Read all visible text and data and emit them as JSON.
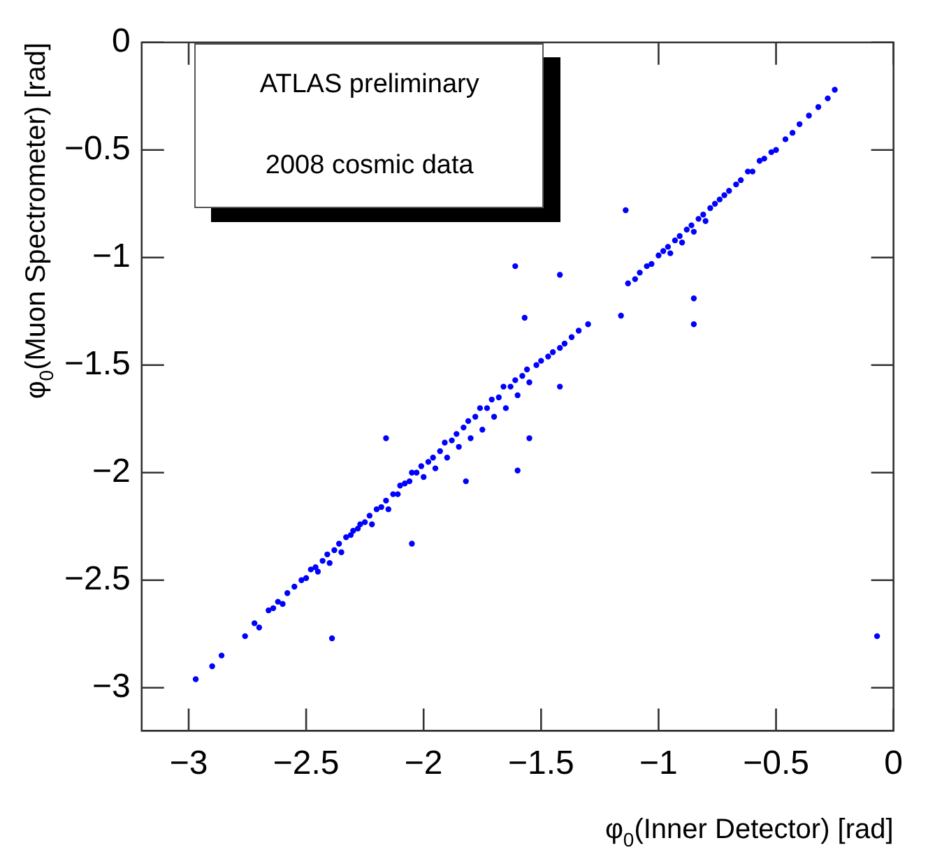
{
  "chart_data": {
    "type": "scatter",
    "xlabel": "φ$_{0}$(Inner Detector) [rad]",
    "ylabel": "φ$_{0}$(Muon Spectrometer) [rad]",
    "annotations": [
      "ATLAS preliminary",
      "2008 cosmic data"
    ],
    "xlim": [
      -3.2,
      0
    ],
    "ylim": [
      -3.2,
      0
    ],
    "xticks": [
      -3,
      -2.5,
      -2,
      -1.5,
      -1,
      -0.5,
      0
    ],
    "yticks": [
      -3,
      -2.5,
      -2,
      -1.5,
      -1,
      -0.5,
      0
    ],
    "grid": false,
    "legend": false,
    "marker": "circle",
    "series": [
      {
        "color": "#0000ff",
        "x": [
          -2.97,
          -2.9,
          -2.86,
          -2.76,
          -2.72,
          -2.7,
          -2.66,
          -2.64,
          -2.62,
          -2.6,
          -2.58,
          -2.55,
          -2.52,
          -2.5,
          -2.48,
          -2.46,
          -2.45,
          -2.43,
          -2.41,
          -2.4,
          -2.38,
          -2.36,
          -2.35,
          -2.33,
          -2.31,
          -2.3,
          -2.28,
          -2.27,
          -2.25,
          -2.23,
          -2.22,
          -2.2,
          -2.18,
          -2.16,
          -2.15,
          -2.13,
          -2.11,
          -2.1,
          -2.08,
          -2.06,
          -2.05,
          -2.03,
          -2.01,
          -2.0,
          -1.98,
          -1.96,
          -1.95,
          -1.93,
          -1.91,
          -1.9,
          -1.88,
          -1.86,
          -1.85,
          -1.83,
          -1.81,
          -1.8,
          -1.78,
          -1.76,
          -1.75,
          -1.73,
          -1.71,
          -1.7,
          -1.68,
          -1.66,
          -1.65,
          -1.63,
          -1.61,
          -1.6,
          -1.58,
          -1.56,
          -1.55,
          -1.52,
          -1.5,
          -1.47,
          -1.45,
          -1.42,
          -1.4,
          -1.37,
          -1.34,
          -1.3,
          -1.13,
          -1.1,
          -1.08,
          -1.05,
          -1.03,
          -1.0,
          -0.98,
          -0.96,
          -0.95,
          -0.93,
          -0.91,
          -0.9,
          -0.88,
          -0.86,
          -0.85,
          -0.83,
          -0.81,
          -0.8,
          -0.78,
          -0.76,
          -0.74,
          -0.72,
          -0.7,
          -0.67,
          -0.65,
          -0.62,
          -0.6,
          -0.57,
          -0.55,
          -0.52,
          -0.5,
          -0.46,
          -0.43,
          -0.4,
          -0.36,
          -0.32,
          -0.28,
          -0.25,
          -2.39,
          -0.07,
          -1.61,
          -0.85,
          -0.85,
          -1.14,
          -1.42,
          -2.05,
          -1.6,
          -1.55,
          -1.82,
          -2.16,
          -1.42,
          -1.57,
          -1.16
        ],
        "values": [
          -2.96,
          -2.9,
          -2.85,
          -2.76,
          -2.7,
          -2.72,
          -2.64,
          -2.63,
          -2.6,
          -2.61,
          -2.56,
          -2.53,
          -2.5,
          -2.49,
          -2.45,
          -2.44,
          -2.46,
          -2.41,
          -2.38,
          -2.42,
          -2.36,
          -2.33,
          -2.37,
          -2.3,
          -2.29,
          -2.27,
          -2.26,
          -2.24,
          -2.23,
          -2.2,
          -2.24,
          -2.17,
          -2.16,
          -2.13,
          -2.17,
          -2.1,
          -2.1,
          -2.06,
          -2.05,
          -2.04,
          -2.0,
          -2.0,
          -1.97,
          -2.02,
          -1.95,
          -1.93,
          -1.98,
          -1.9,
          -1.86,
          -1.93,
          -1.85,
          -1.82,
          -1.88,
          -1.79,
          -1.76,
          -1.84,
          -1.74,
          -1.7,
          -1.8,
          -1.7,
          -1.66,
          -1.74,
          -1.65,
          -1.6,
          -1.7,
          -1.6,
          -1.57,
          -1.64,
          -1.55,
          -1.52,
          -1.58,
          -1.5,
          -1.48,
          -1.46,
          -1.44,
          -1.42,
          -1.4,
          -1.37,
          -1.34,
          -1.31,
          -1.12,
          -1.1,
          -1.07,
          -1.04,
          -1.03,
          -0.99,
          -0.97,
          -0.95,
          -0.98,
          -0.92,
          -0.9,
          -0.93,
          -0.87,
          -0.85,
          -0.88,
          -0.82,
          -0.8,
          -0.83,
          -0.77,
          -0.75,
          -0.73,
          -0.71,
          -0.69,
          -0.66,
          -0.64,
          -0.6,
          -0.6,
          -0.55,
          -0.54,
          -0.51,
          -0.5,
          -0.45,
          -0.42,
          -0.38,
          -0.34,
          -0.3,
          -0.26,
          -0.22,
          -2.77,
          -2.76,
          -1.04,
          -1.19,
          -1.31,
          -0.78,
          -1.08,
          -2.33,
          -1.99,
          -1.84,
          -2.04,
          -1.84,
          -1.6,
          -1.28,
          -1.27
        ]
      }
    ]
  }
}
